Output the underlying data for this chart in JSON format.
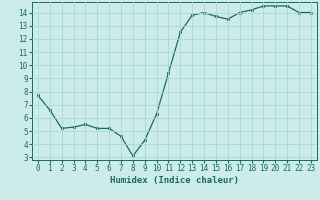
{
  "x": [
    0,
    1,
    2,
    3,
    4,
    5,
    6,
    7,
    8,
    9,
    10,
    11,
    12,
    13,
    14,
    15,
    16,
    17,
    18,
    19,
    20,
    21,
    22,
    23
  ],
  "y": [
    7.7,
    6.6,
    5.2,
    5.3,
    5.5,
    5.2,
    5.2,
    4.6,
    3.1,
    4.3,
    6.3,
    9.4,
    12.5,
    13.8,
    14.0,
    13.7,
    13.5,
    14.0,
    14.2,
    14.5,
    14.5,
    14.5,
    14.0,
    14.0
  ],
  "xlabel": "Humidex (Indice chaleur)",
  "xlim": [
    -0.5,
    23.5
  ],
  "ylim": [
    2.8,
    14.8
  ],
  "yticks": [
    3,
    4,
    5,
    6,
    7,
    8,
    9,
    10,
    11,
    12,
    13,
    14
  ],
  "xticks": [
    0,
    1,
    2,
    3,
    4,
    5,
    6,
    7,
    8,
    9,
    10,
    11,
    12,
    13,
    14,
    15,
    16,
    17,
    18,
    19,
    20,
    21,
    22,
    23
  ],
  "line_color": "#1a6b5a",
  "marker_color": "#1a6b5a",
  "bg_color": "#ccecea",
  "grid_color": "#aad8d4",
  "axis_label_fontsize": 6.5,
  "tick_fontsize": 5.5
}
